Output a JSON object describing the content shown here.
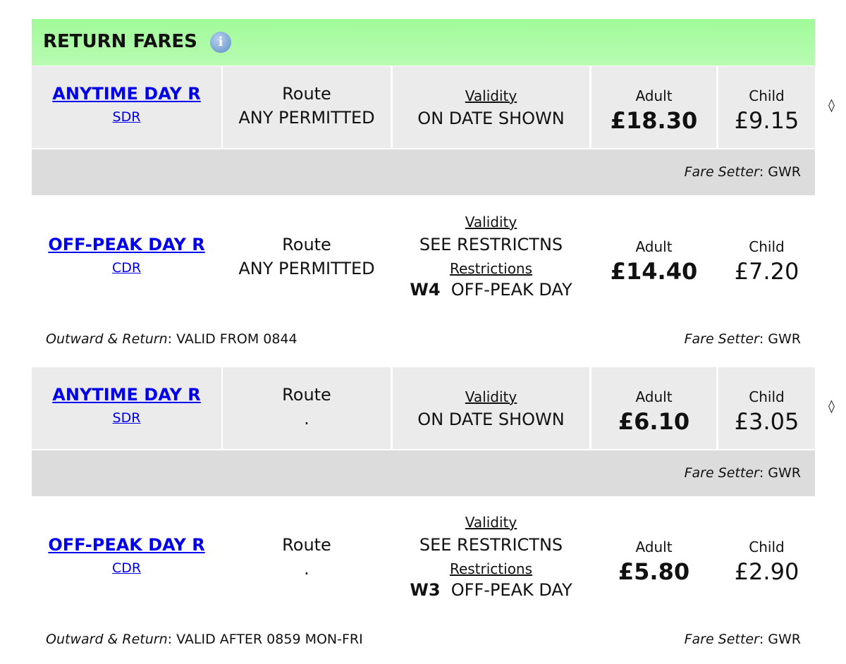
{
  "section": {
    "title": "RETURN FARES",
    "info_icon": "info-icon"
  },
  "labels": {
    "route": "Route",
    "validity": "Validity",
    "restrictions": "Restrictions",
    "adult": "Adult",
    "child": "Child",
    "fare_setter": "Fare Setter",
    "outward_return": "Outward & Return"
  },
  "fares": [
    {
      "name": "ANYTIME DAY R",
      "code": "SDR",
      "route": "ANY PERMITTED",
      "validity": "ON DATE SHOWN",
      "adult": "£18.30",
      "child": "£9.15",
      "setter": "GWR"
    },
    {
      "name": "OFF-PEAK DAY R",
      "code": "CDR",
      "route": "ANY PERMITTED",
      "validity": "SEE RESTRICTNS",
      "restriction_code": "W4",
      "restriction_text": "OFF-PEAK DAY",
      "adult": "£14.40",
      "child": "£7.20",
      "setter": "GWR",
      "outward_return": "VALID FROM 0844"
    },
    {
      "name": "ANYTIME DAY R",
      "code": "SDR",
      "route": ".",
      "validity": "ON DATE SHOWN",
      "adult": "£6.10",
      "child": "£3.05",
      "setter": "GWR"
    },
    {
      "name": "OFF-PEAK DAY R",
      "code": "CDR",
      "route": ".",
      "validity": "SEE RESTRICTNS",
      "restriction_code": "W3",
      "restriction_text": "OFF-PEAK DAY",
      "adult": "£5.80",
      "child": "£2.90",
      "setter": "GWR",
      "outward_return": "VALID AFTER 0859 MON-FRI"
    }
  ],
  "diamond": "◊"
}
